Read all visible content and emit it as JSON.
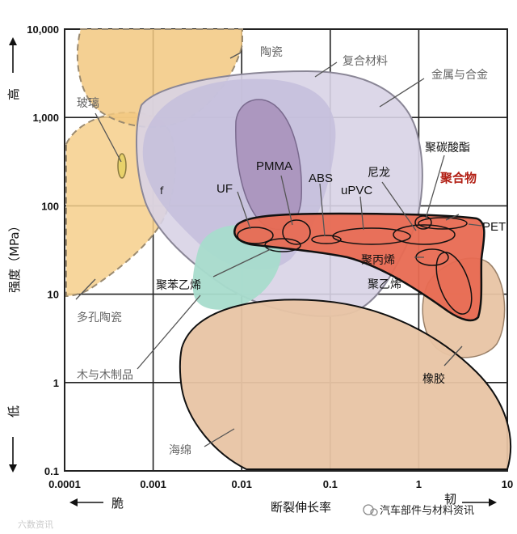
{
  "chart_data": {
    "type": "scatter",
    "x_axis": {
      "scale": "log",
      "range": [
        0.0001,
        10
      ],
      "tick_labels": [
        "0.0001",
        "0.001",
        "0.01",
        "0.1",
        "1",
        "10"
      ],
      "title": "断裂伸长率",
      "low_label": "脆",
      "high_label": "韧"
    },
    "y_axis": {
      "scale": "log",
      "range": [
        0.1,
        10000
      ],
      "tick_labels": [
        "0.1",
        "1",
        "10",
        "100",
        "1,000",
        "10,000"
      ],
      "title": "强度（MPa）",
      "high_label": "高",
      "low_label": "低"
    },
    "grid": true,
    "regions": [
      {
        "name": "陶瓷",
        "x_range": [
          0.0001,
          0.01
        ],
        "y_range": [
          300,
          10000
        ]
      },
      {
        "name": "玻璃",
        "x_range": [
          0.00045,
          0.00055
        ],
        "y_range": [
          250,
          450
        ]
      },
      {
        "name": "多孔陶瓷",
        "x_range": [
          0.0001,
          0.001
        ],
        "y_range": [
          10,
          1000
        ]
      },
      {
        "name": "复合材料",
        "x_range": [
          0.0007,
          0.25
        ],
        "y_range": [
          25,
          3000
        ]
      },
      {
        "name": "金属与合金",
        "x_range": [
          0.002,
          1
        ],
        "y_range": [
          8,
          2000
        ]
      },
      {
        "name": "聚合物",
        "x_range": [
          0.01,
          3
        ],
        "y_range": [
          6,
          90
        ]
      },
      {
        "name": "PMMA",
        "x_range": [
          0.01,
          0.03
        ],
        "y_range": [
          40,
          2000
        ]
      },
      {
        "name": "PET",
        "x_range": [
          1,
          3
        ],
        "y_range": [
          50,
          80
        ]
      },
      {
        "name": "聚丙烯",
        "x_range": [
          1,
          2.5
        ],
        "y_range": [
          25,
          40
        ]
      },
      {
        "name": "聚乙烯",
        "x_range": [
          1.3,
          3
        ],
        "y_range": [
          8,
          30
        ]
      },
      {
        "name": "木与木制品",
        "x_range": [
          0.002,
          0.05
        ],
        "y_range": [
          4,
          70
        ]
      },
      {
        "name": "橡胶",
        "x_range": [
          1,
          10
        ],
        "y_range": [
          2,
          30
        ]
      },
      {
        "name": "海绵",
        "x_range": [
          0.0015,
          5
        ],
        "y_range": [
          0.1,
          12
        ]
      }
    ],
    "labels": {
      "ceramic": "陶瓷",
      "glass": "玻璃",
      "porous_ceramic": "多孔陶瓷",
      "composite": "复合材料",
      "metal": "金属与合金",
      "polymer": "聚合物",
      "pmma": "PMMA",
      "uf": "UF",
      "abs": "ABS",
      "nylon": "尼龙",
      "upvc": "uPVC",
      "pc": "聚碳酸酯",
      "pet": "PET",
      "pp": "聚丙烯",
      "pe": "聚乙烯",
      "ps": "聚苯乙烯",
      "wood": "木与木制品",
      "rubber": "橡胶",
      "foam": "海绵",
      "stray_f": "f"
    }
  },
  "watermark": {
    "right": "汽车部件与材料资讯",
    "left": "六数资讯"
  },
  "colors": {
    "ceramic": "#f2c880",
    "porous_ceramic": "#f6cf8b",
    "composite": "#c4bedc",
    "metal": "#d8d3e6",
    "pmma": "#a992bb",
    "polymer": "#e86a52",
    "wood": "#a8dccc",
    "sponge": "#e8c4a4",
    "rubber": "#e8c4a4",
    "grid": "#222222"
  }
}
